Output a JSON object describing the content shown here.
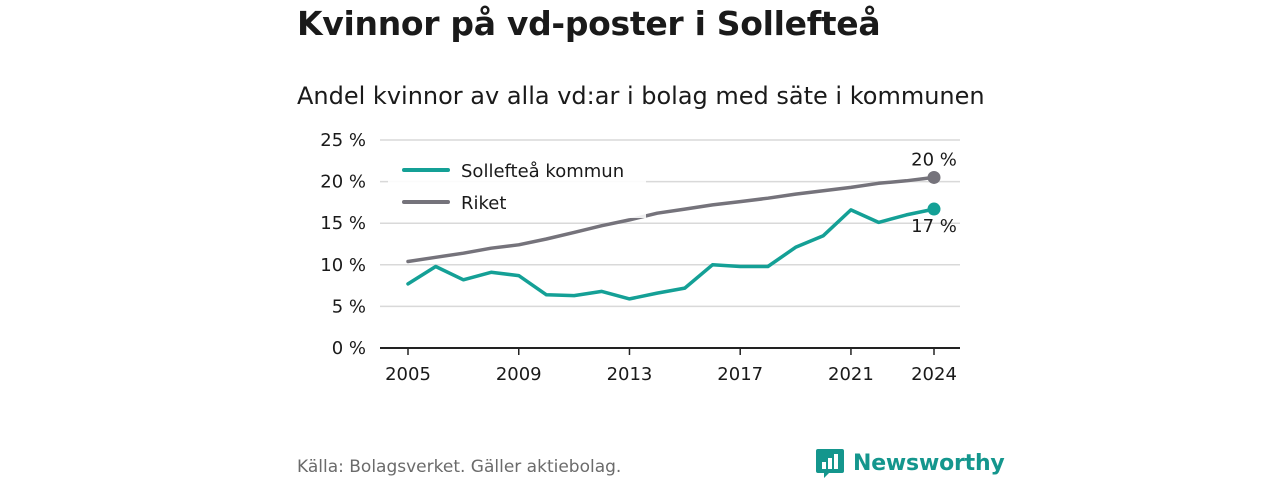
{
  "title": "Kvinnor på vd-poster i Sollefteå",
  "subtitle": "Andel kvinnor av alla vd:ar i bolag med säte i kommunen",
  "source": "Källa: Bolagsverket. Gäller aktiebolag.",
  "brand": {
    "name": "Newsworthy",
    "icon": "newsworthy-logo-icon"
  },
  "colors": {
    "kommun": "#14a096",
    "riket": "#75737b",
    "grid": "#d9d9d9",
    "axis": "#222222"
  },
  "chart_data": {
    "type": "line",
    "x": [
      2005,
      2006,
      2007,
      2008,
      2009,
      2010,
      2011,
      2012,
      2013,
      2014,
      2015,
      2016,
      2017,
      2018,
      2019,
      2020,
      2021,
      2022,
      2023,
      2024
    ],
    "ylim": [
      0,
      25
    ],
    "yticks": [
      0,
      5,
      10,
      15,
      20,
      25
    ],
    "ytick_labels": [
      "0 %",
      "5 %",
      "10 %",
      "15 %",
      "20 %",
      "25 %"
    ],
    "xticks": [
      2005,
      2009,
      2013,
      2017,
      2021,
      2024
    ],
    "xtick_labels": [
      "2005",
      "2009",
      "2013",
      "2017",
      "2021",
      "2024"
    ],
    "grid": true,
    "legend": "top-left",
    "series": [
      {
        "name": "Sollefteå kommun",
        "values": [
          7.7,
          9.8,
          8.2,
          9.1,
          8.7,
          6.4,
          6.3,
          6.8,
          5.9,
          6.6,
          7.2,
          10.0,
          9.8,
          9.8,
          12.1,
          13.5,
          16.6,
          15.1,
          16.0,
          16.7
        ],
        "end_label": "17 %"
      },
      {
        "name": "Riket",
        "values": [
          10.4,
          10.9,
          11.4,
          12.0,
          12.4,
          13.1,
          13.9,
          14.7,
          15.4,
          16.2,
          16.7,
          17.2,
          17.6,
          18.0,
          18.5,
          18.9,
          19.3,
          19.8,
          20.1,
          20.5
        ],
        "end_label": "20 %"
      }
    ]
  }
}
